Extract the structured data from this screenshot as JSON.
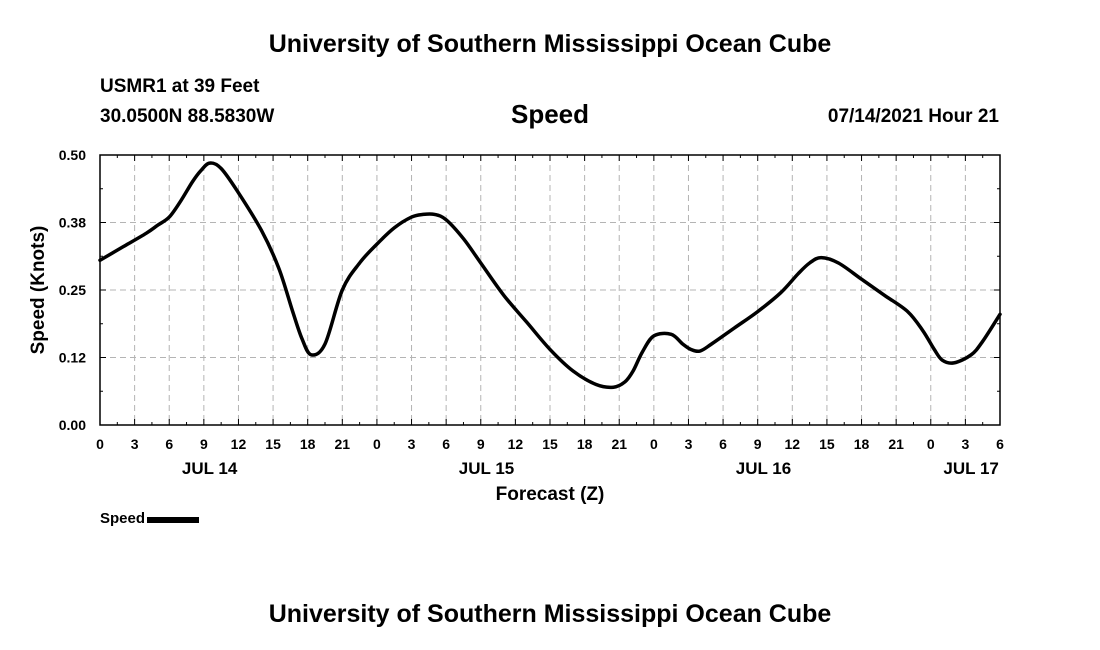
{
  "page_title": "University of Southern Mississippi Ocean Cube",
  "footer_title": "University of Southern Mississippi Ocean Cube",
  "station": "USMR1 at 39 Feet",
  "coordinates": "30.0500N  88.5830W",
  "variable_title": "Speed",
  "datetime": "07/14/2021 Hour 21",
  "legend": {
    "label": "Speed",
    "color": "#000000"
  },
  "chart_data": {
    "type": "line",
    "title": "Speed",
    "xlabel": "Forecast (Z)",
    "ylabel": "Speed (Knots)",
    "xlim": [
      0,
      78
    ],
    "ylim": [
      0,
      0.5
    ],
    "grid": true,
    "y_ticks": [
      0.0,
      0.125,
      0.25,
      0.375,
      0.5
    ],
    "y_tick_labels": [
      "0.00",
      "0.12",
      "0.25",
      "0.38",
      "0.50"
    ],
    "x_ticks": [
      0,
      3,
      6,
      9,
      12,
      15,
      18,
      21,
      24,
      27,
      30,
      33,
      36,
      39,
      42,
      45,
      48,
      51,
      54,
      57,
      60,
      63,
      66,
      69,
      72,
      75,
      78
    ],
    "x_tick_labels": [
      "0",
      "3",
      "6",
      "9",
      "12",
      "15",
      "18",
      "21",
      "0",
      "3",
      "6",
      "9",
      "12",
      "15",
      "18",
      "21",
      "0",
      "3",
      "6",
      "9",
      "12",
      "15",
      "18",
      "21",
      "0",
      "3",
      "6"
    ],
    "date_labels": [
      {
        "label": "JUL 14",
        "x": 9.5
      },
      {
        "label": "JUL 15",
        "x": 33.5
      },
      {
        "label": "JUL 16",
        "x": 57.5
      },
      {
        "label": "JUL 17",
        "x": 75.5
      }
    ],
    "series": [
      {
        "name": "Speed",
        "x": [
          0,
          2,
          4,
          5,
          6,
          7,
          8,
          8.7,
          9.5,
          10.5,
          12,
          14,
          15.5,
          16.7,
          17.5,
          18.3,
          19.5,
          21,
          22.5,
          24,
          25.5,
          27,
          28,
          29,
          30,
          31.5,
          33,
          35,
          37,
          39,
          41,
          43,
          44.5,
          45.5,
          46.2,
          47,
          48,
          49.5,
          50.5,
          51.2,
          52,
          53,
          55,
          57,
          59,
          60.5,
          61.5,
          62.5,
          64,
          66,
          68,
          70,
          71.3,
          72.3,
          73,
          74,
          75.5,
          76.5,
          78
        ],
        "values": [
          0.305,
          0.33,
          0.355,
          0.37,
          0.385,
          0.415,
          0.45,
          0.47,
          0.485,
          0.475,
          0.43,
          0.36,
          0.29,
          0.21,
          0.16,
          0.13,
          0.15,
          0.25,
          0.3,
          0.335,
          0.365,
          0.385,
          0.39,
          0.39,
          0.38,
          0.345,
          0.3,
          0.24,
          0.19,
          0.14,
          0.1,
          0.075,
          0.07,
          0.08,
          0.1,
          0.135,
          0.165,
          0.168,
          0.15,
          0.14,
          0.137,
          0.15,
          0.18,
          0.21,
          0.245,
          0.28,
          0.3,
          0.31,
          0.3,
          0.27,
          0.24,
          0.21,
          0.175,
          0.14,
          0.12,
          0.115,
          0.13,
          0.155,
          0.205
        ]
      }
    ]
  }
}
